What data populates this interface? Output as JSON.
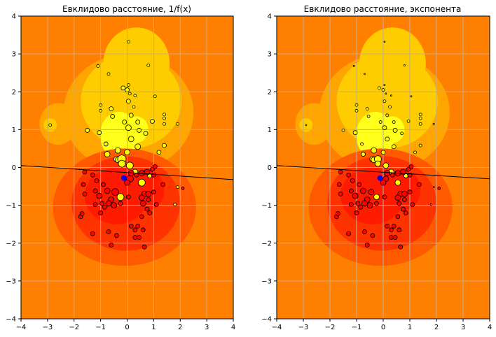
{
  "chart_data": [
    {
      "type": "scatter",
      "title": "Евклидово расстояние, 1/f(x)",
      "xlim": [
        -4,
        4
      ],
      "ylim": [
        -4,
        4
      ],
      "xticks": [
        "−4",
        "−3",
        "−2",
        "−1",
        "0",
        "1",
        "2",
        "3",
        "4"
      ],
      "yticks": [
        "−4",
        "−3",
        "−2",
        "−1",
        "0",
        "1",
        "2",
        "3",
        "4"
      ],
      "grid": true,
      "background_contour": {
        "levels_colors": [
          "#ff8000",
          "#ffa500",
          "#ffcc00",
          "#ffff1a",
          "#ff5a00",
          "#ff3300",
          "#ff1a00"
        ]
      },
      "decision_line": {
        "x": [
          -4,
          4
        ],
        "y": [
          0.05,
          -0.32
        ]
      },
      "query_point": {
        "x": -0.12,
        "y": -0.28,
        "color": "#0000ff"
      },
      "series": [
        {
          "color": "#ffff00",
          "points": [
            [
              0.05,
              3.32
            ],
            [
              0.8,
              2.7
            ],
            [
              -1.1,
              2.68
            ],
            [
              -0.7,
              2.47
            ],
            [
              -0.15,
              2.1
            ],
            [
              0.0,
              2.05
            ],
            [
              0.05,
              2.18
            ],
            [
              0.1,
              1.95
            ],
            [
              0.3,
              1.9
            ],
            [
              -0.6,
              1.55
            ],
            [
              -1.0,
              1.65
            ],
            [
              -1.0,
              1.5
            ],
            [
              0.05,
              1.75
            ],
            [
              0.25,
              1.6
            ],
            [
              1.05,
              1.88
            ],
            [
              0.15,
              1.38
            ],
            [
              -0.55,
              1.35
            ],
            [
              -0.1,
              1.2
            ],
            [
              0.4,
              1.2
            ],
            [
              1.4,
              1.4
            ],
            [
              1.4,
              1.3
            ],
            [
              0.95,
              1.22
            ],
            [
              1.4,
              1.15
            ],
            [
              1.9,
              1.15
            ],
            [
              -2.9,
              1.12
            ],
            [
              -1.5,
              0.98
            ],
            [
              -1.05,
              0.92
            ],
            [
              0.05,
              1.05
            ],
            [
              0.45,
              0.98
            ],
            [
              0.7,
              0.9
            ],
            [
              -0.8,
              0.62
            ],
            [
              0.15,
              0.75
            ],
            [
              1.4,
              0.58
            ],
            [
              0.4,
              0.55
            ],
            [
              -0.35,
              0.45
            ],
            [
              0.0,
              0.4
            ],
            [
              1.2,
              0.4
            ],
            [
              -0.75,
              0.35
            ],
            [
              -0.4,
              0.22
            ],
            [
              -0.35,
              0.2
            ],
            [
              -0.2,
              0.22
            ],
            [
              -0.2,
              0.1
            ],
            [
              0.1,
              0.05
            ],
            [
              0.3,
              -0.12
            ],
            [
              0.55,
              -0.4
            ],
            [
              0.85,
              -0.22
            ],
            [
              1.9,
              -0.52
            ],
            [
              -0.25,
              -0.78
            ],
            [
              1.8,
              -0.98
            ]
          ],
          "sizes": [
            2,
            2,
            2,
            2,
            3,
            3,
            2,
            2,
            2,
            3,
            2,
            2,
            3,
            2,
            2,
            3,
            3,
            3,
            3,
            2,
            2,
            3,
            2,
            2,
            2,
            3,
            3,
            4,
            3,
            3,
            3,
            4,
            3,
            4,
            4,
            4,
            3,
            4,
            4,
            4,
            6,
            5,
            5,
            4,
            5,
            3,
            2,
            5,
            2
          ]
        },
        {
          "color": "#ff0000",
          "points": [
            [
              -1.6,
              -0.12
            ],
            [
              -1.65,
              -0.45
            ],
            [
              -1.15,
              -0.35
            ],
            [
              -1.3,
              -0.2
            ],
            [
              -1.2,
              -0.62
            ],
            [
              -0.9,
              -0.45
            ],
            [
              -0.75,
              -0.62
            ],
            [
              -0.6,
              -0.85
            ],
            [
              -0.45,
              -0.65
            ],
            [
              -0.25,
              -0.95
            ],
            [
              -0.95,
              -0.95
            ],
            [
              -1.05,
              -0.75
            ],
            [
              -1.2,
              -0.98
            ],
            [
              -0.7,
              -0.95
            ],
            [
              -0.5,
              -1.0
            ],
            [
              0.05,
              -0.78
            ],
            [
              0.1,
              -0.3
            ],
            [
              0.0,
              -0.4
            ],
            [
              0.15,
              -0.15
            ],
            [
              0.35,
              -0.2
            ],
            [
              0.55,
              -0.15
            ],
            [
              0.75,
              -0.12
            ],
            [
              0.95,
              -0.05
            ],
            [
              1.0,
              -0.2
            ],
            [
              1.05,
              0.02
            ],
            [
              1.35,
              -0.45
            ],
            [
              2.1,
              -0.55
            ],
            [
              0.65,
              -0.7
            ],
            [
              0.8,
              -0.7
            ],
            [
              1.0,
              -0.65
            ],
            [
              0.55,
              -0.8
            ],
            [
              0.6,
              -0.95
            ],
            [
              0.8,
              -0.85
            ],
            [
              1.1,
              -0.98
            ],
            [
              -1.6,
              -0.7
            ],
            [
              -1.75,
              -1.3
            ],
            [
              -1.7,
              -1.22
            ],
            [
              -1.3,
              -1.75
            ],
            [
              -1.0,
              -1.2
            ],
            [
              -0.85,
              -1.05
            ],
            [
              -0.7,
              -1.7
            ],
            [
              -0.6,
              -2.05
            ],
            [
              -0.4,
              -1.8
            ],
            [
              0.15,
              -1.55
            ],
            [
              0.4,
              -1.55
            ],
            [
              0.55,
              -1.3
            ],
            [
              0.75,
              -1.1
            ],
            [
              0.85,
              -1.2
            ],
            [
              0.6,
              -1.65
            ],
            [
              0.3,
              -1.65
            ],
            [
              0.3,
              -1.85
            ],
            [
              0.45,
              -1.85
            ],
            [
              0.65,
              -2.1
            ]
          ],
          "sizes": [
            3,
            3,
            3,
            3,
            3,
            3,
            4,
            4,
            5,
            3,
            3,
            4,
            3,
            4,
            4,
            3,
            5,
            4,
            4,
            3,
            4,
            4,
            3,
            3,
            3,
            3,
            2,
            4,
            4,
            3,
            4,
            4,
            3,
            3,
            3,
            3,
            3,
            3,
            3,
            3,
            3,
            3,
            3,
            3,
            3,
            3,
            3,
            3,
            3,
            3,
            3,
            3,
            3
          ]
        }
      ]
    },
    {
      "type": "scatter",
      "title": "Евклидово расстояние, экспонента",
      "xlim": [
        -4,
        4
      ],
      "ylim": [
        -4,
        4
      ],
      "xticks": [
        "−4",
        "−3",
        "−2",
        "−1",
        "0",
        "1",
        "2",
        "3",
        "4"
      ],
      "yticks": [
        "−4",
        "−3",
        "−2",
        "−1",
        "0",
        "1",
        "2",
        "3",
        "4"
      ],
      "grid": true,
      "background_contour": {
        "levels_colors": [
          "#ff8000",
          "#ffa500",
          "#ffcc00",
          "#ffff1a",
          "#ff5a00",
          "#ff3300",
          "#ff1a00"
        ]
      },
      "decision_line": {
        "x": [
          -4,
          4
        ],
        "y": [
          0.05,
          -0.3
        ]
      },
      "query_point": {
        "x": -0.12,
        "y": -0.28,
        "color": "#0000ff"
      },
      "series": [
        {
          "color": "#ffff00",
          "points": [
            [
              0.05,
              3.32
            ],
            [
              0.8,
              2.7
            ],
            [
              -1.1,
              2.68
            ],
            [
              -0.7,
              2.47
            ],
            [
              -0.15,
              2.1
            ],
            [
              0.0,
              2.05
            ],
            [
              0.05,
              2.18
            ],
            [
              0.1,
              1.95
            ],
            [
              0.3,
              1.9
            ],
            [
              -0.6,
              1.55
            ],
            [
              -1.0,
              1.65
            ],
            [
              -1.0,
              1.5
            ],
            [
              0.05,
              1.75
            ],
            [
              0.25,
              1.6
            ],
            [
              1.05,
              1.88
            ],
            [
              0.15,
              1.38
            ],
            [
              -0.55,
              1.35
            ],
            [
              -0.1,
              1.2
            ],
            [
              0.4,
              1.2
            ],
            [
              1.4,
              1.4
            ],
            [
              1.4,
              1.3
            ],
            [
              0.95,
              1.22
            ],
            [
              1.4,
              1.15
            ],
            [
              1.9,
              1.15
            ],
            [
              -2.9,
              1.12
            ],
            [
              -1.5,
              0.98
            ],
            [
              -1.05,
              0.92
            ],
            [
              0.05,
              1.05
            ],
            [
              0.45,
              0.98
            ],
            [
              0.7,
              0.9
            ],
            [
              -0.8,
              0.62
            ],
            [
              0.15,
              0.75
            ],
            [
              1.4,
              0.58
            ],
            [
              0.4,
              0.55
            ],
            [
              -0.35,
              0.45
            ],
            [
              0.0,
              0.4
            ],
            [
              1.2,
              0.4
            ],
            [
              -0.75,
              0.35
            ],
            [
              -0.4,
              0.22
            ],
            [
              -0.35,
              0.2
            ],
            [
              -0.2,
              0.22
            ],
            [
              -0.2,
              0.1
            ],
            [
              0.1,
              0.05
            ],
            [
              0.3,
              -0.12
            ],
            [
              0.55,
              -0.4
            ],
            [
              0.85,
              -0.22
            ],
            [
              1.9,
              -0.52
            ],
            [
              -0.25,
              -0.78
            ],
            [
              1.8,
              -0.98
            ]
          ],
          "sizes": [
            1,
            1,
            1,
            1,
            2,
            2,
            1,
            1,
            1,
            2,
            2,
            2,
            2,
            2,
            1,
            2,
            2,
            2,
            2,
            2,
            2,
            2,
            2,
            1,
            1,
            2,
            3,
            3,
            3,
            2,
            2,
            3,
            2,
            3,
            4,
            3,
            2,
            3,
            4,
            4,
            5,
            4,
            4,
            4,
            4,
            3,
            1,
            4,
            1
          ]
        },
        {
          "color": "#ff0000",
          "points": [
            [
              -1.6,
              -0.12
            ],
            [
              -1.65,
              -0.45
            ],
            [
              -1.15,
              -0.35
            ],
            [
              -1.3,
              -0.2
            ],
            [
              -1.2,
              -0.62
            ],
            [
              -0.9,
              -0.45
            ],
            [
              -0.75,
              -0.62
            ],
            [
              -0.6,
              -0.85
            ],
            [
              -0.45,
              -0.65
            ],
            [
              -0.25,
              -0.95
            ],
            [
              -0.95,
              -0.95
            ],
            [
              -1.05,
              -0.75
            ],
            [
              -1.2,
              -0.98
            ],
            [
              -0.7,
              -0.95
            ],
            [
              -0.5,
              -1.0
            ],
            [
              0.05,
              -0.78
            ],
            [
              0.1,
              -0.3
            ],
            [
              0.0,
              -0.4
            ],
            [
              0.15,
              -0.15
            ],
            [
              0.35,
              -0.2
            ],
            [
              0.55,
              -0.15
            ],
            [
              0.75,
              -0.12
            ],
            [
              0.95,
              -0.05
            ],
            [
              1.0,
              -0.2
            ],
            [
              1.05,
              0.02
            ],
            [
              1.35,
              -0.45
            ],
            [
              2.1,
              -0.55
            ],
            [
              0.65,
              -0.7
            ],
            [
              0.8,
              -0.7
            ],
            [
              1.0,
              -0.65
            ],
            [
              0.55,
              -0.8
            ],
            [
              0.6,
              -0.95
            ],
            [
              0.8,
              -0.85
            ],
            [
              1.1,
              -0.98
            ],
            [
              -1.6,
              -0.7
            ],
            [
              -1.75,
              -1.3
            ],
            [
              -1.7,
              -1.22
            ],
            [
              -1.3,
              -1.75
            ],
            [
              -1.0,
              -1.2
            ],
            [
              -0.85,
              -1.05
            ],
            [
              -0.7,
              -1.7
            ],
            [
              -0.6,
              -2.05
            ],
            [
              -0.4,
              -1.8
            ],
            [
              0.15,
              -1.55
            ],
            [
              0.4,
              -1.55
            ],
            [
              0.55,
              -1.3
            ],
            [
              0.75,
              -1.1
            ],
            [
              0.85,
              -1.2
            ],
            [
              0.6,
              -1.65
            ],
            [
              0.3,
              -1.65
            ],
            [
              0.3,
              -1.85
            ],
            [
              0.45,
              -1.85
            ],
            [
              0.65,
              -2.1
            ]
          ],
          "sizes": [
            3,
            3,
            3,
            3,
            3,
            3,
            4,
            4,
            4,
            3,
            3,
            4,
            3,
            4,
            4,
            3,
            4,
            4,
            4,
            3,
            4,
            4,
            3,
            3,
            3,
            3,
            2,
            4,
            4,
            3,
            4,
            3,
            3,
            3,
            3,
            3,
            3,
            3,
            3,
            3,
            3,
            3,
            3,
            3,
            3,
            3,
            3,
            3,
            3,
            3,
            3,
            3,
            3
          ]
        }
      ]
    }
  ]
}
